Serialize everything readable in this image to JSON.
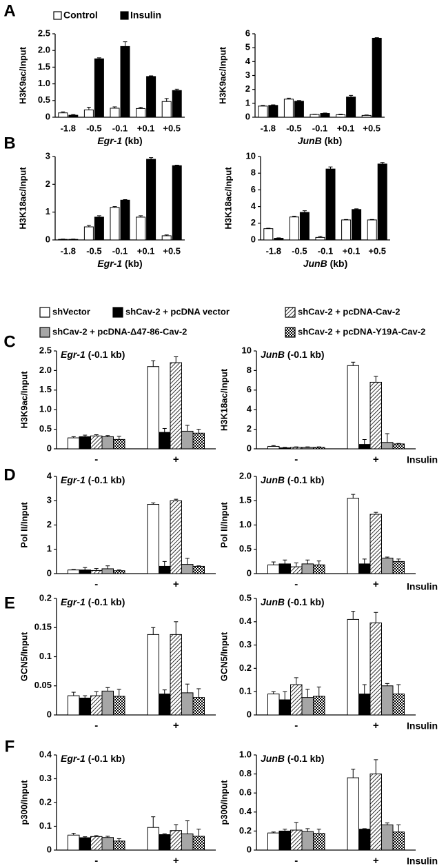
{
  "figure": {
    "panel_letters": [
      "A",
      "B",
      "C",
      "D",
      "E",
      "F"
    ],
    "legend_top": [
      "Control",
      "Insulin"
    ],
    "legend_bottom": [
      "shVector",
      "shCav-2 + pcDNA vector",
      "shCav-2 + pcDNA-Cav-2",
      "shCav-2 + pcDNA-Δ47-86-Cav-2",
      "shCav-2 + pcDNA-Y19A-Cav-2"
    ],
    "insulin_label": "Insulin",
    "insulin_ticks": [
      "-",
      "+"
    ]
  },
  "chart_data": [
    {
      "id": "A-left",
      "panel": "A",
      "type": "bar",
      "ylabel": "H3K9ac/Input",
      "xlabel_gene": "Egr-1",
      "xlabel_unit": " (kb)",
      "categories": [
        "-1.8",
        "-0.5",
        "-0.1",
        "+0.1",
        "+0.5"
      ],
      "ylim": [
        0,
        2.5
      ],
      "yticks": [
        "0",
        "0.5",
        "1.0",
        "1.5",
        "2.0",
        "2.5"
      ],
      "series": [
        {
          "name": "Control",
          "values": [
            0.13,
            0.22,
            0.27,
            0.26,
            0.47
          ],
          "errors": [
            0.03,
            0.08,
            0.04,
            0.04,
            0.09
          ]
        },
        {
          "name": "Insulin",
          "values": [
            0.06,
            1.75,
            2.12,
            1.22,
            0.8
          ],
          "errors": [
            0.02,
            0.03,
            0.14,
            0.02,
            0.04
          ]
        }
      ]
    },
    {
      "id": "A-right",
      "panel": "A",
      "type": "bar",
      "ylabel": "H3K9ac/Input",
      "xlabel_gene": "JunB",
      "xlabel_unit": " (kb)",
      "categories": [
        "-1.8",
        "-0.5",
        "-0.1",
        "+0.1",
        "+0.5"
      ],
      "ylim": [
        0,
        6
      ],
      "yticks": [
        "0",
        "1",
        "2",
        "3",
        "4",
        "5",
        "6"
      ],
      "series": [
        {
          "name": "Control",
          "values": [
            0.8,
            1.3,
            0.2,
            0.18,
            0.13
          ],
          "errors": [
            0.05,
            0.07,
            0.02,
            0.04,
            0.03
          ]
        },
        {
          "name": "Insulin",
          "values": [
            0.85,
            1.15,
            0.27,
            1.45,
            5.68
          ],
          "errors": [
            0.04,
            0.05,
            0.03,
            0.12,
            0.04
          ]
        }
      ]
    },
    {
      "id": "B-left",
      "panel": "B",
      "type": "bar",
      "ylabel": "H3K18ac/Input",
      "xlabel_gene": "Egr-1",
      "xlabel_unit": " (kb)",
      "categories": [
        "-1.8",
        "-0.5",
        "-0.1",
        "+0.1",
        "+0.5"
      ],
      "ylim": [
        0,
        3
      ],
      "yticks": [
        "0",
        "1",
        "2",
        "3"
      ],
      "series": [
        {
          "name": "Control",
          "values": [
            0.02,
            0.47,
            1.17,
            0.82,
            0.15
          ],
          "errors": [
            0.01,
            0.05,
            0.03,
            0.05,
            0.03
          ]
        },
        {
          "name": "Insulin",
          "values": [
            0.02,
            0.82,
            1.43,
            2.9,
            2.67
          ],
          "errors": [
            0.01,
            0.05,
            0.02,
            0.06,
            0.02
          ]
        }
      ]
    },
    {
      "id": "B-right",
      "panel": "B",
      "type": "bar",
      "ylabel": "H3K18ac/Input",
      "xlabel_gene": "JunB",
      "xlabel_unit": " (kb)",
      "categories": [
        "-1.8",
        "-0.5",
        "-0.1",
        "+0.1",
        "+0.5"
      ],
      "ylim": [
        0,
        10
      ],
      "yticks": [
        "0",
        "2",
        "4",
        "6",
        "8",
        "10"
      ],
      "series": [
        {
          "name": "Control",
          "values": [
            1.35,
            2.75,
            0.3,
            2.4,
            2.4
          ],
          "errors": [
            0.05,
            0.1,
            0.12,
            0.05,
            0.05
          ]
        },
        {
          "name": "Insulin",
          "values": [
            0.2,
            3.3,
            8.5,
            3.65,
            9.1
          ],
          "errors": [
            0.05,
            0.2,
            0.25,
            0.08,
            0.18
          ]
        }
      ]
    },
    {
      "id": "C-left",
      "panel": "C",
      "type": "bar",
      "ylabel": "H3K9ac/Input",
      "title_gene": "Egr-1",
      "title_suffix": " (-0.1 kb)",
      "categories": [
        "-",
        "+"
      ],
      "ylim": [
        0,
        2.5
      ],
      "yticks": [
        "0",
        "0.5",
        "1.0",
        "1.5",
        "2.0",
        "2.5"
      ],
      "series": [
        {
          "name": "shVector",
          "values": [
            0.28,
            2.1
          ],
          "errors": [
            0.03,
            0.15
          ]
        },
        {
          "name": "shCav-2 + pcDNA vector",
          "values": [
            0.31,
            0.42
          ],
          "errors": [
            0.04,
            0.1
          ]
        },
        {
          "name": "shCav-2 + pcDNA-Cav-2",
          "values": [
            0.33,
            2.2
          ],
          "errors": [
            0.03,
            0.15
          ]
        },
        {
          "name": "shCav-2 + pcDNA-Δ47-86-Cav-2",
          "values": [
            0.31,
            0.45
          ],
          "errors": [
            0.03,
            0.15
          ]
        },
        {
          "name": "shCav-2 + pcDNA-Y19A-Cav-2",
          "values": [
            0.24,
            0.4
          ],
          "errors": [
            0.08,
            0.1
          ]
        }
      ]
    },
    {
      "id": "C-right",
      "panel": "C",
      "type": "bar",
      "ylabel": "H3K18ac/Input",
      "title_gene": "JunB",
      "title_suffix": " (-0.1 kb)",
      "categories": [
        "-",
        "+"
      ],
      "ylim": [
        0,
        10
      ],
      "yticks": [
        "0",
        "2",
        "4",
        "6",
        "8",
        "10"
      ],
      "series": [
        {
          "name": "shVector",
          "values": [
            0.25,
            8.5
          ],
          "errors": [
            0.08,
            0.35
          ]
        },
        {
          "name": "shCav-2 + pcDNA vector",
          "values": [
            0.1,
            0.45
          ],
          "errors": [
            0.05,
            0.5
          ]
        },
        {
          "name": "shCav-2 + pcDNA-Cav-2",
          "values": [
            0.15,
            6.8
          ],
          "errors": [
            0.05,
            0.6
          ]
        },
        {
          "name": "shCav-2 + pcDNA-Δ47-86-Cav-2",
          "values": [
            0.15,
            0.65
          ],
          "errors": [
            0.05,
            0.9
          ]
        },
        {
          "name": "shCav-2 + pcDNA-Y19A-Cav-2",
          "values": [
            0.15,
            0.5
          ],
          "errors": [
            0.05,
            0.05
          ]
        }
      ]
    },
    {
      "id": "D-left",
      "panel": "D",
      "type": "bar",
      "ylabel": "Pol II/Input",
      "title_gene": "Egr-1",
      "title_suffix": " (-0.1 kb)",
      "categories": [
        "-",
        "+"
      ],
      "ylim": [
        0,
        4
      ],
      "yticks": [
        "0",
        "1",
        "2",
        "3",
        "4"
      ],
      "series": [
        {
          "name": "shVector",
          "values": [
            0.15,
            2.85
          ],
          "errors": [
            0.02,
            0.06
          ]
        },
        {
          "name": "shCav-2 + pcDNA vector",
          "values": [
            0.15,
            0.3
          ],
          "errors": [
            0.1,
            0.2
          ]
        },
        {
          "name": "shCav-2 + pcDNA-Cav-2",
          "values": [
            0.13,
            3.0
          ],
          "errors": [
            0.08,
            0.06
          ]
        },
        {
          "name": "shCav-2 + pcDNA-Δ47-86-Cav-2",
          "values": [
            0.2,
            0.38
          ],
          "errors": [
            0.12,
            0.25
          ]
        },
        {
          "name": "shCav-2 + pcDNA-Y19A-Cav-2",
          "values": [
            0.12,
            0.3
          ],
          "errors": [
            0.03,
            0.02
          ]
        }
      ]
    },
    {
      "id": "D-right",
      "panel": "D",
      "type": "bar",
      "ylabel": "Pol II/Input",
      "title_gene": "JunB",
      "title_suffix": " (-0.1 kb)",
      "categories": [
        "-",
        "+"
      ],
      "ylim": [
        0,
        2.0
      ],
      "yticks": [
        "0",
        "0.5",
        "1.0",
        "1.5",
        "2.0"
      ],
      "series": [
        {
          "name": "shVector",
          "values": [
            0.18,
            1.55
          ],
          "errors": [
            0.06,
            0.08
          ]
        },
        {
          "name": "shCav-2 + pcDNA vector",
          "values": [
            0.2,
            0.2
          ],
          "errors": [
            0.08,
            0.1
          ]
        },
        {
          "name": "shCav-2 + pcDNA-Cav-2",
          "values": [
            0.14,
            1.22
          ],
          "errors": [
            0.08,
            0.04
          ]
        },
        {
          "name": "shCav-2 + pcDNA-Δ47-86-Cav-2",
          "values": [
            0.2,
            0.32
          ],
          "errors": [
            0.08,
            0.02
          ]
        },
        {
          "name": "shCav-2 + pcDNA-Y19A-Cav-2",
          "values": [
            0.18,
            0.25
          ],
          "errors": [
            0.08,
            0.05
          ]
        }
      ]
    },
    {
      "id": "E-left",
      "panel": "E",
      "type": "bar",
      "ylabel": "GCN5/Input",
      "title_gene": "Egr-1",
      "title_suffix": " (-0.1 kb)",
      "categories": [
        "-",
        "+"
      ],
      "ylim": [
        0,
        0.2
      ],
      "yticks": [
        "0",
        "0.05",
        "0.1",
        "0.15",
        "0.2"
      ],
      "series": [
        {
          "name": "shVector",
          "values": [
            0.033,
            0.138
          ],
          "errors": [
            0.006,
            0.012
          ]
        },
        {
          "name": "shCav-2 + pcDNA vector",
          "values": [
            0.029,
            0.036
          ],
          "errors": [
            0.004,
            0.007
          ]
        },
        {
          "name": "shCav-2 + pcDNA-Cav-2",
          "values": [
            0.033,
            0.138
          ],
          "errors": [
            0.007,
            0.022
          ]
        },
        {
          "name": "shCav-2 + pcDNA-Δ47-86-Cav-2",
          "values": [
            0.041,
            0.038
          ],
          "errors": [
            0.006,
            0.015
          ]
        },
        {
          "name": "shCav-2 + pcDNA-Y19A-Cav-2",
          "values": [
            0.032,
            0.03
          ],
          "errors": [
            0.012,
            0.015
          ]
        }
      ]
    },
    {
      "id": "E-right",
      "panel": "E",
      "type": "bar",
      "ylabel": "GCN5/Input",
      "title_gene": "JunB",
      "title_suffix": " (-0.1 kb)",
      "categories": [
        "-",
        "+"
      ],
      "ylim": [
        0,
        0.5
      ],
      "yticks": [
        "0",
        "0.1",
        "0.2",
        "0.3",
        "0.4",
        "0.5"
      ],
      "series": [
        {
          "name": "shVector",
          "values": [
            0.09,
            0.41
          ],
          "errors": [
            0.01,
            0.035
          ]
        },
        {
          "name": "shCav-2 + pcDNA vector",
          "values": [
            0.065,
            0.09
          ],
          "errors": [
            0.035,
            0.04
          ]
        },
        {
          "name": "shCav-2 + pcDNA-Cav-2",
          "values": [
            0.13,
            0.395
          ],
          "errors": [
            0.03,
            0.045
          ]
        },
        {
          "name": "shCav-2 + pcDNA-Δ47-86-Cav-2",
          "values": [
            0.075,
            0.125
          ],
          "errors": [
            0.035,
            0.01
          ]
        },
        {
          "name": "shCav-2 + pcDNA-Y19A-Cav-2",
          "values": [
            0.08,
            0.09
          ],
          "errors": [
            0.04,
            0.04
          ]
        }
      ]
    },
    {
      "id": "F-left",
      "panel": "F",
      "type": "bar",
      "ylabel": "p300/Input",
      "title_gene": "Egr-1",
      "title_suffix": " (-0.1 kb)",
      "categories": [
        "-",
        "+"
      ],
      "ylim": [
        0,
        0.4
      ],
      "yticks": [
        "0",
        "0.1",
        "0.2",
        "0.3",
        "0.4"
      ],
      "series": [
        {
          "name": "shVector",
          "values": [
            0.063,
            0.095
          ],
          "errors": [
            0.008,
            0.045
          ]
        },
        {
          "name": "shCav-2 + pcDNA vector",
          "values": [
            0.052,
            0.065
          ],
          "errors": [
            0.004,
            0.003
          ]
        },
        {
          "name": "shCav-2 + pcDNA-Cav-2",
          "values": [
            0.057,
            0.082
          ],
          "errors": [
            0.004,
            0.025
          ]
        },
        {
          "name": "shCav-2 + pcDNA-Δ47-86-Cav-2",
          "values": [
            0.053,
            0.068
          ],
          "errors": [
            0.005,
            0.055
          ]
        },
        {
          "name": "shCav-2 + pcDNA-Y19A-Cav-2",
          "values": [
            0.038,
            0.058
          ],
          "errors": [
            0.01,
            0.03
          ]
        }
      ]
    },
    {
      "id": "F-right",
      "panel": "F",
      "type": "bar",
      "ylabel": "p300/Input",
      "title_gene": "JunB",
      "title_suffix": " (-0.1 kb)",
      "categories": [
        "-",
        "+"
      ],
      "ylim": [
        0,
        1.0
      ],
      "yticks": [
        "0",
        "0.2",
        "0.4",
        "0.6",
        "0.8",
        "1.0"
      ],
      "series": [
        {
          "name": "shVector",
          "values": [
            0.18,
            0.76
          ],
          "errors": [
            0.01,
            0.09
          ]
        },
        {
          "name": "shCav-2 + pcDNA vector",
          "values": [
            0.2,
            0.22
          ],
          "errors": [
            0.02,
            0.005
          ]
        },
        {
          "name": "shCav-2 + pcDNA-Cav-2",
          "values": [
            0.21,
            0.8
          ],
          "errors": [
            0.08,
            0.15
          ]
        },
        {
          "name": "shCav-2 + pcDNA-Δ47-86-Cav-2",
          "values": [
            0.195,
            0.265
          ],
          "errors": [
            0.03,
            0.02
          ]
        },
        {
          "name": "shCav-2 + pcDNA-Y19A-Cav-2",
          "values": [
            0.175,
            0.19
          ],
          "errors": [
            0.045,
            0.075
          ]
        }
      ]
    }
  ]
}
